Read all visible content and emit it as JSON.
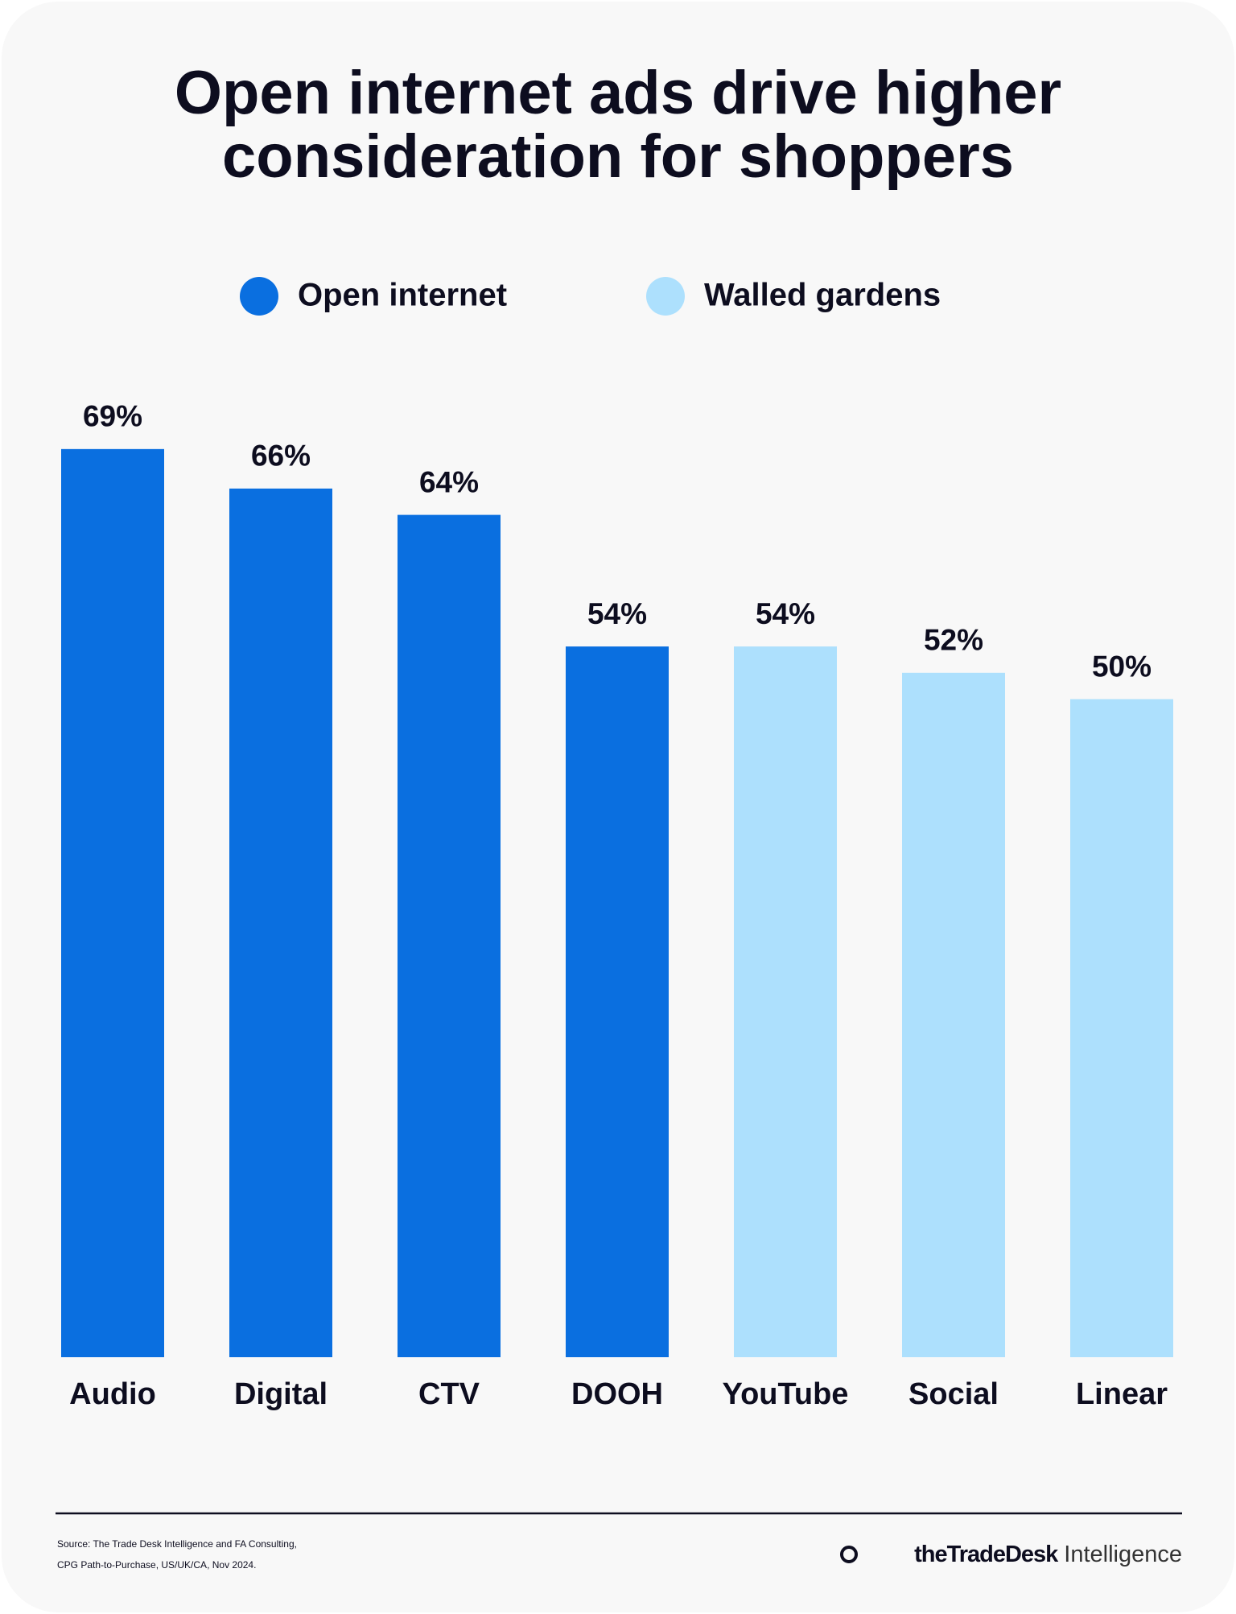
{
  "chart_data": {
    "type": "bar",
    "title": [
      "Open internet ads drive higher",
      "consideration for shoppers"
    ],
    "categories": [
      "Audio",
      "Digital",
      "CTV",
      "DOOH",
      "YouTube",
      "Social",
      "Linear"
    ],
    "series": [
      {
        "name": "Open internet",
        "color": "#0a6fe0",
        "values": [
          69,
          66,
          64,
          54,
          null,
          null,
          null
        ],
        "value_labels": [
          "69%",
          "66%",
          "64%",
          "54%",
          null,
          null,
          null
        ]
      },
      {
        "name": "Walled gardens",
        "color": "#ade0fd",
        "values": [
          null,
          null,
          null,
          null,
          54,
          52,
          50
        ],
        "value_labels": [
          null,
          null,
          null,
          null,
          "54%",
          "52%",
          "50%"
        ]
      }
    ],
    "legend": "top"
  },
  "footer": {
    "source": [
      "Source: The Trade Desk Intelligence and FA Consulting,",
      "CPG Path-to-Purchase, US/UK/CA, Nov 2024."
    ],
    "brand": {
      "name": "theTradeDesk",
      "suffix": "Intelligence"
    }
  }
}
